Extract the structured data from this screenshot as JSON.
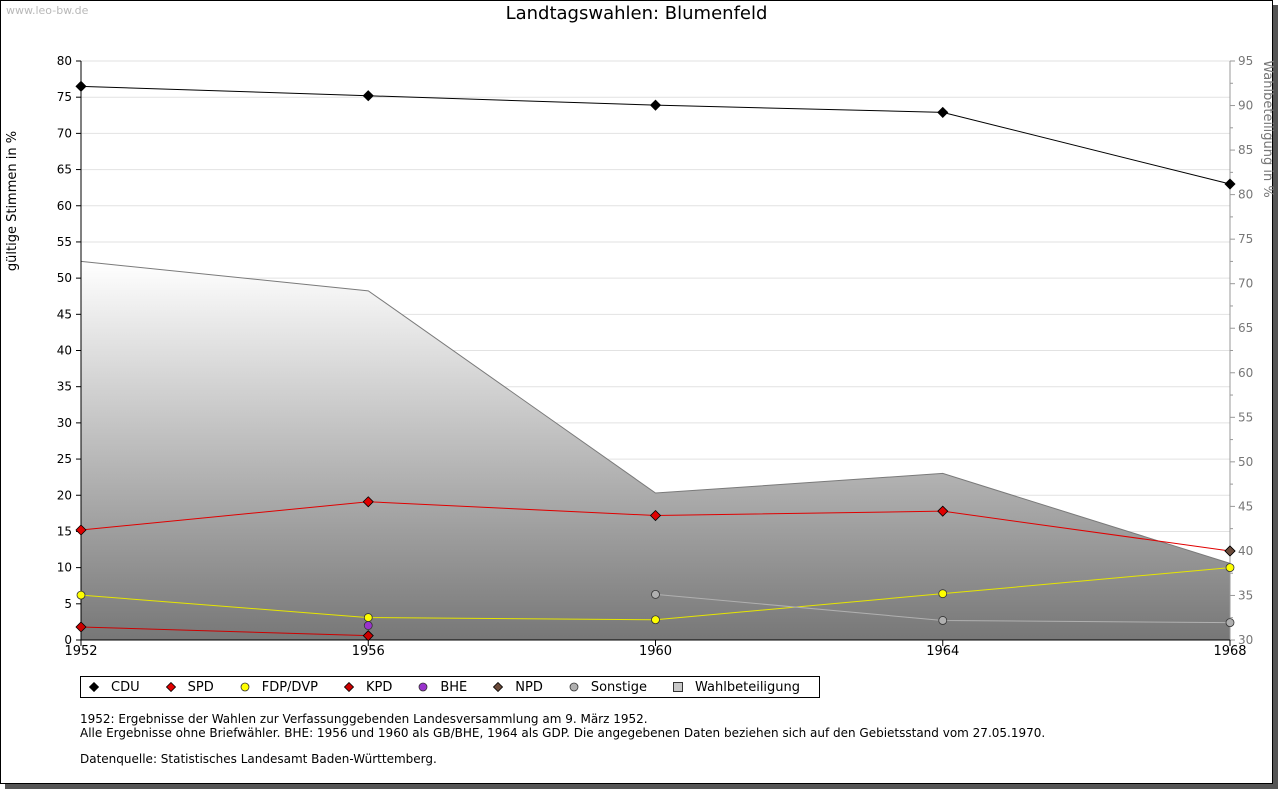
{
  "watermark": "www.leo-bw.de",
  "chart_data": {
    "type": "line",
    "title": "Landtagswahlen: Blumenfeld",
    "ylabel": "gültige Stimmen in %",
    "y2label": "Wahlbeteiligung in %",
    "categories": [
      "1952",
      "1956",
      "1960",
      "1964",
      "1968"
    ],
    "ylim": [
      0,
      80
    ],
    "yticks": [
      0,
      5,
      10,
      15,
      20,
      25,
      30,
      35,
      40,
      45,
      50,
      55,
      60,
      65,
      70,
      75,
      80
    ],
    "y2lim": [
      30,
      95
    ],
    "y2ticks": [
      30,
      35,
      40,
      45,
      50,
      55,
      60,
      65,
      70,
      75,
      80,
      85,
      90,
      95
    ],
    "grid": true,
    "area": {
      "name": "Wahlbeteiligung",
      "axis": "y2",
      "values": [
        72.5,
        69.2,
        46.5,
        48.7,
        38.6
      ],
      "color": "#909090"
    },
    "series": [
      {
        "name": "CDU",
        "color": "#000000",
        "values": [
          76.5,
          75.2,
          73.9,
          72.9,
          63.0
        ]
      },
      {
        "name": "SPD",
        "color": "#e00000",
        "values": [
          15.2,
          19.1,
          17.2,
          17.8,
          12.3
        ]
      },
      {
        "name": "FDP/DVP",
        "color": "#ffff00",
        "line_color": "#e6e600",
        "values": [
          6.2,
          3.1,
          2.8,
          6.4,
          10.0
        ]
      },
      {
        "name": "KPD",
        "color": "#cc0000",
        "values": [
          1.8,
          0.6,
          null,
          null,
          null
        ]
      },
      {
        "name": "BHE",
        "color": "#9933cc",
        "values": [
          null,
          2.0,
          null,
          null,
          null
        ]
      },
      {
        "name": "NPD",
        "color": "#6b4a3a",
        "values": [
          null,
          null,
          null,
          null,
          12.3
        ]
      },
      {
        "name": "Sonstige",
        "color": "#b0b0b0",
        "values": [
          null,
          null,
          6.3,
          2.7,
          2.4
        ]
      }
    ],
    "legend": [
      "CDU",
      "SPD",
      "FDP/DVP",
      "KPD",
      "BHE",
      "NPD",
      "Sonstige",
      "Wahlbeteiligung"
    ],
    "legend_position": "bottom-left"
  },
  "notes": {
    "line1": "1952: Ergebnisse der Wahlen zur Verfassunggebenden Landesversammlung am 9. März 1952.",
    "line2": "Alle Ergebnisse ohne Briefwähler. BHE: 1956 und 1960 als GB/BHE, 1964 als GDP. Die angegebenen Daten beziehen sich auf den Gebietsstand vom 27.05.1970.",
    "source": "Datenquelle: Statistisches Landesamt Baden-Württemberg."
  }
}
